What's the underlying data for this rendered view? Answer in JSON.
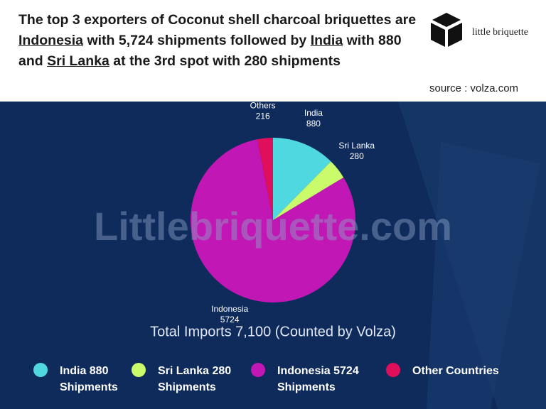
{
  "header": {
    "headline": [
      {
        "text": "The top 3 exporters of Coconut shell charcoal briquettes are "
      },
      {
        "text": "Indonesia",
        "underline": true
      },
      {
        "text": " with 5,724 shipments followed by "
      },
      {
        "text": "India",
        "underline": true
      },
      {
        "text": " with 880 and "
      },
      {
        "text": "Sri Lanka",
        "underline": true
      },
      {
        "text": " at the 3rd spot with 280 shipments"
      }
    ],
    "logo": "little briquette",
    "source": "source : volza.com"
  },
  "chart_data": {
    "type": "pie",
    "watermark": "Littlebriquette.com",
    "subtitle": "Total Imports 7,100 (Counted by Volza)",
    "series": [
      {
        "name": "India",
        "color": "#4fd8e0",
        "values": [
          880
        ]
      },
      {
        "name": "Sri Lanka",
        "color": "#c9fb6b",
        "values": [
          280
        ]
      },
      {
        "name": "Indonesia",
        "color": "#c118b5",
        "values": [
          5724
        ]
      },
      {
        "name": "Others",
        "color": "#df0f5c",
        "values": [
          216
        ]
      }
    ],
    "legend": [
      [
        "India 880",
        "Shipments"
      ],
      [
        "Sri Lanka 280",
        "Shipments"
      ],
      [
        "Indonesia 5724",
        "Shipments"
      ],
      [
        "Other Countries"
      ]
    ]
  }
}
